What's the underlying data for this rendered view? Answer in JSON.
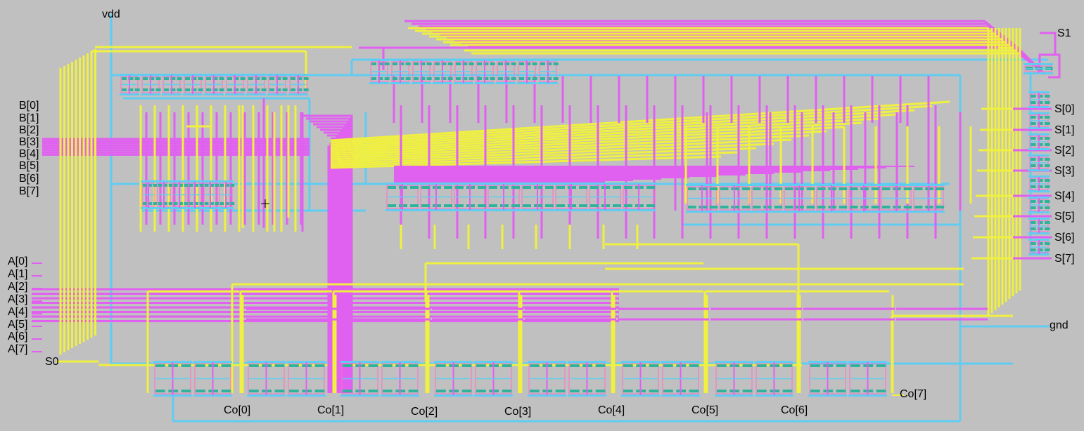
{
  "colors": {
    "background": "#c0c0c0",
    "metal1": "#5fcdf2",
    "metal2": "#e060f0",
    "metal3": "#f0f040",
    "poly": "#ff6ec8",
    "diffusion": "#2fb39c",
    "contact": "#7a7a7a"
  },
  "power": {
    "vdd": "vdd",
    "gnd": "gnd"
  },
  "select": {
    "s0": "S0",
    "s1": "S1"
  },
  "inputs_b": [
    "B[0]",
    "B[1]",
    "B[2]",
    "B[3]",
    "B[4]",
    "B[5]",
    "B[6]",
    "B[7]"
  ],
  "inputs_a": [
    "A[0]",
    "A[1]",
    "A[2]",
    "A[3]",
    "A[4]",
    "A[5]",
    "A[6]",
    "A[7]"
  ],
  "outputs_s": [
    "S[0]",
    "S[1]",
    "S[2]",
    "S[3]",
    "S[4]",
    "S[5]",
    "S[6]",
    "S[7]"
  ],
  "carries": [
    "Co[0]",
    "Co[1]",
    "Co[2]",
    "Co[3]",
    "Co[4]",
    "Co[5]",
    "Co[6]",
    "Co[7]"
  ]
}
